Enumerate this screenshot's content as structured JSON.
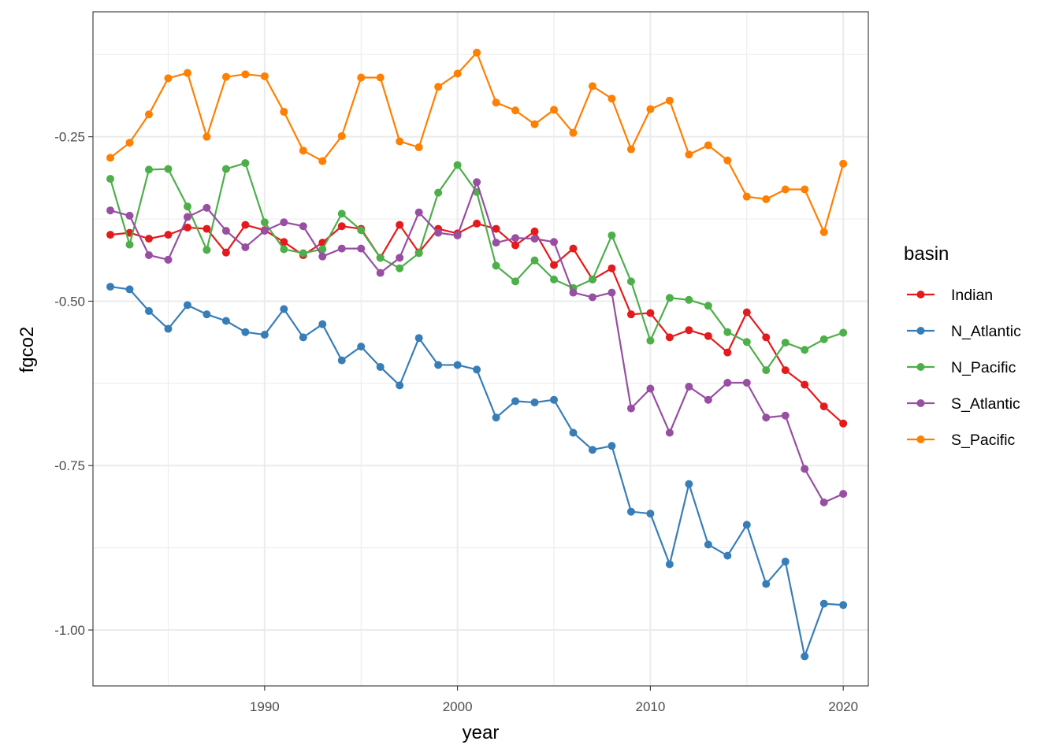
{
  "chart_data": {
    "type": "line",
    "xlabel": "year",
    "ylabel": "fgco2",
    "xlim": [
      1981.1,
      2021.3
    ],
    "ylim": [
      -1.085,
      -0.06
    ],
    "x_ticks": [
      1990,
      2000,
      2010,
      2020
    ],
    "x_tick_labels": [
      "1990",
      "2000",
      "2010",
      "2020"
    ],
    "x_minor": [
      1985,
      1995,
      2005,
      2015
    ],
    "y_ticks": [
      -0.25,
      -0.5,
      -0.75,
      -1.0
    ],
    "y_tick_labels": [
      "-0.25",
      "-0.50",
      "-0.75",
      "-1.00"
    ],
    "y_minor": [
      -0.125,
      -0.375,
      -0.625,
      -0.875
    ],
    "grid": true,
    "legend": {
      "title": "basin",
      "position": "right"
    },
    "x": [
      1982,
      1983,
      1984,
      1985,
      1986,
      1987,
      1988,
      1989,
      1990,
      1991,
      1992,
      1993,
      1994,
      1995,
      1996,
      1997,
      1998,
      1999,
      2000,
      2001,
      2002,
      2003,
      2004,
      2005,
      2006,
      2007,
      2008,
      2009,
      2010,
      2011,
      2012,
      2013,
      2014,
      2015,
      2016,
      2017,
      2018,
      2019,
      2020
    ],
    "series": [
      {
        "name": "Indian",
        "color": "#E41A1C",
        "values": [
          -0.399,
          -0.396,
          -0.405,
          -0.399,
          -0.388,
          -0.39,
          -0.426,
          -0.384,
          -0.392,
          -0.41,
          -0.43,
          -0.411,
          -0.386,
          -0.39,
          -0.434,
          -0.384,
          -0.426,
          -0.39,
          -0.397,
          -0.382,
          -0.39,
          -0.415,
          -0.394,
          -0.445,
          -0.42,
          -0.467,
          -0.45,
          -0.52,
          -0.518,
          -0.555,
          -0.544,
          -0.553,
          -0.578,
          -0.517,
          -0.555,
          -0.605,
          -0.627,
          -0.66,
          -0.686
        ]
      },
      {
        "name": "N_Atlantic",
        "color": "#377EB8",
        "values": [
          -0.478,
          -0.482,
          -0.515,
          -0.542,
          -0.506,
          -0.52,
          -0.53,
          -0.547,
          -0.551,
          -0.512,
          -0.555,
          -0.535,
          -0.59,
          -0.569,
          -0.6,
          -0.628,
          -0.556,
          -0.597,
          -0.597,
          -0.604,
          -0.677,
          -0.652,
          -0.654,
          -0.65,
          -0.7,
          -0.726,
          -0.72,
          -0.82,
          -0.823,
          -0.9,
          -0.778,
          -0.87,
          -0.887,
          -0.84,
          -0.93,
          -0.896,
          -1.04,
          -0.96,
          -0.962
        ]
      },
      {
        "name": "N_Pacific",
        "color": "#4DAF4A",
        "values": [
          -0.314,
          -0.414,
          -0.3,
          -0.299,
          -0.356,
          -0.422,
          -0.299,
          -0.29,
          -0.38,
          -0.421,
          -0.427,
          -0.421,
          -0.367,
          -0.392,
          -0.434,
          -0.45,
          -0.427,
          -0.335,
          -0.293,
          -0.334,
          -0.446,
          -0.47,
          -0.438,
          -0.467,
          -0.48,
          -0.467,
          -0.4,
          -0.47,
          -0.56,
          -0.495,
          -0.498,
          -0.507,
          -0.547,
          -0.562,
          -0.605,
          -0.563,
          -0.574,
          -0.558,
          -0.548
        ]
      },
      {
        "name": "S_Atlantic",
        "color": "#984EA3",
        "values": [
          -0.362,
          -0.37,
          -0.43,
          -0.437,
          -0.372,
          -0.358,
          -0.393,
          -0.418,
          -0.393,
          -0.38,
          -0.386,
          -0.432,
          -0.42,
          -0.42,
          -0.457,
          -0.434,
          -0.365,
          -0.396,
          -0.4,
          -0.319,
          -0.411,
          -0.404,
          -0.405,
          -0.41,
          -0.487,
          -0.494,
          -0.487,
          -0.663,
          -0.633,
          -0.7,
          -0.63,
          -0.65,
          -0.624,
          -0.624,
          -0.677,
          -0.674,
          -0.755,
          -0.806,
          -0.793
        ]
      },
      {
        "name": "S_Pacific",
        "color": "#FF7F00",
        "values": [
          -0.282,
          -0.259,
          -0.216,
          -0.161,
          -0.153,
          -0.25,
          -0.159,
          -0.155,
          -0.158,
          -0.212,
          -0.271,
          -0.287,
          -0.249,
          -0.16,
          -0.16,
          -0.257,
          -0.266,
          -0.174,
          -0.154,
          -0.122,
          -0.198,
          -0.21,
          -0.231,
          -0.209,
          -0.244,
          -0.173,
          -0.192,
          -0.269,
          -0.208,
          -0.195,
          -0.277,
          -0.263,
          -0.286,
          -0.341,
          -0.345,
          -0.33,
          -0.33,
          -0.395,
          -0.291
        ]
      }
    ]
  }
}
